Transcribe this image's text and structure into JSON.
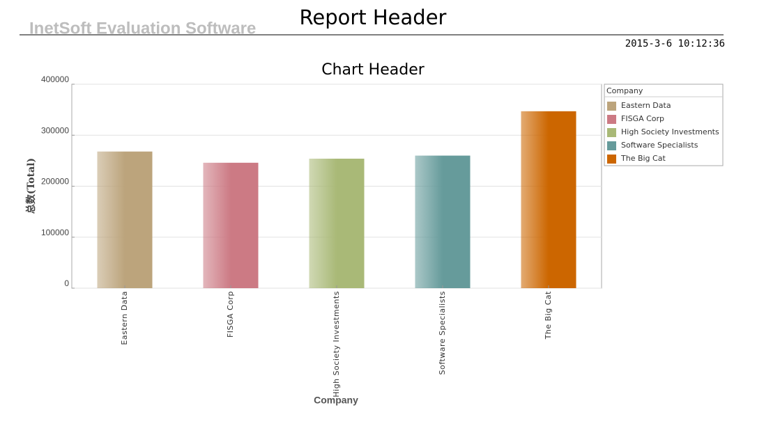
{
  "report": {
    "title": "Report Header",
    "watermark": "InetSoft Evaluation Software",
    "timestamp": "2015-3-6 10:12:36"
  },
  "chart_data": {
    "type": "bar",
    "title": "Chart Header",
    "x_label": "Company",
    "y_label": "总数(Total)",
    "legend_title": "Company",
    "categories": [
      "Eastern Data",
      "FISGA Corp",
      "High Society Investments",
      "Software Specialists",
      "The Big Cat"
    ],
    "values": [
      268000,
      246000,
      254000,
      260000,
      347000
    ],
    "colors": [
      "#bca47c",
      "#cc7a84",
      "#a9b977",
      "#669b9b",
      "#cc6600"
    ],
    "ylim": [
      0,
      400000
    ],
    "yticks": [
      0,
      100000,
      200000,
      300000,
      400000
    ],
    "grid": true
  }
}
